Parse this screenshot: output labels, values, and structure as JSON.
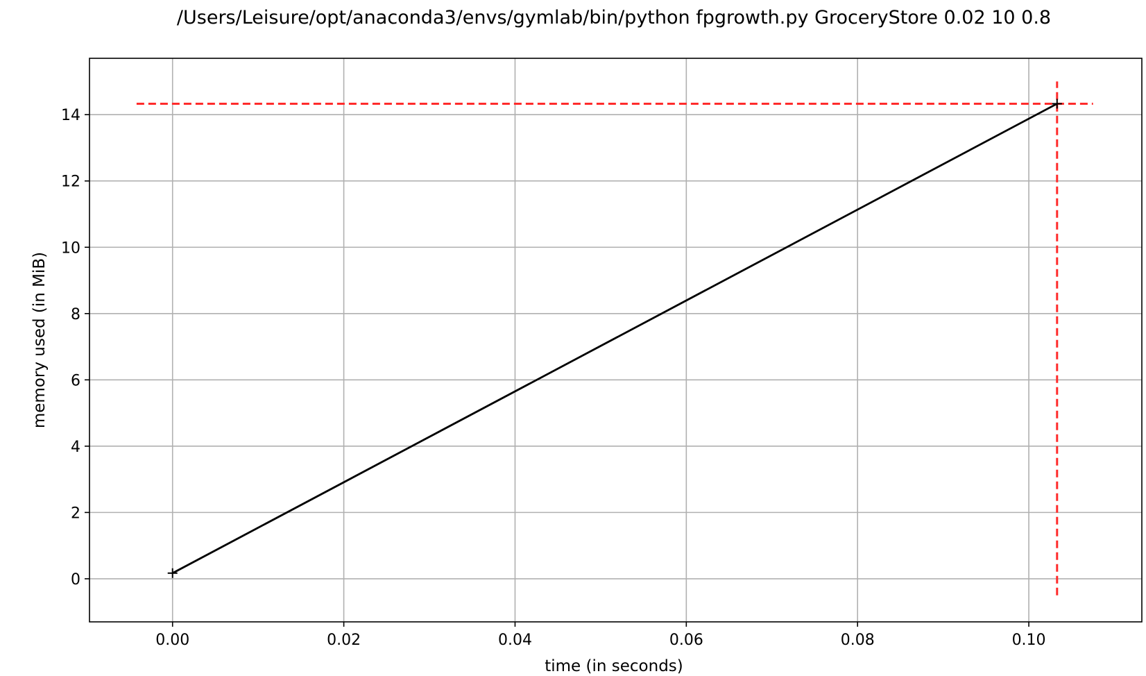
{
  "chart_data": {
    "type": "line",
    "title": "/Users/Leisure/opt/anaconda3/envs/gymlab/bin/python fpgrowth.py GroceryStore 0.02 10 0.8",
    "xlabel": "time (in seconds)",
    "ylabel": "memory used (in MiB)",
    "xlim": [
      -0.0097,
      0.1132
    ],
    "ylim": [
      -1.3,
      15.7
    ],
    "xticks": [
      0.0,
      0.02,
      0.04,
      0.06,
      0.08,
      0.1
    ],
    "xtick_labels": [
      "0.00",
      "0.02",
      "0.04",
      "0.06",
      "0.08",
      "0.10"
    ],
    "yticks": [
      0,
      2,
      4,
      6,
      8,
      10,
      12,
      14
    ],
    "ytick_labels": [
      "0",
      "2",
      "4",
      "6",
      "8",
      "10",
      "12",
      "14"
    ],
    "grid": true,
    "series": [
      {
        "x": [
          0.0,
          0.1033
        ],
        "y": [
          0.17,
          14.33
        ],
        "color": "#000000",
        "marker": "+"
      }
    ],
    "reference_lines": [
      {
        "orientation": "horizontal",
        "value": 14.33,
        "from": -0.0042,
        "to": 0.1075,
        "color": "#ff2b2b",
        "style": "dashed"
      },
      {
        "orientation": "vertical",
        "value": 0.1033,
        "from": -0.5,
        "to": 15.0,
        "color": "#ff2b2b",
        "style": "dashed"
      }
    ]
  }
}
